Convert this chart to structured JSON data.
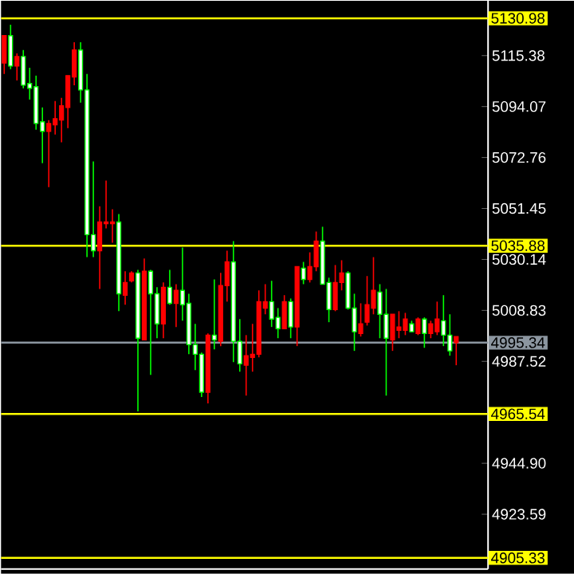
{
  "chart_data": {
    "type": "candlestick",
    "categories": [
      null,
      null,
      null,
      null,
      null,
      null,
      null,
      null,
      null,
      null,
      null,
      null,
      null,
      null,
      null,
      null,
      null,
      null,
      null,
      null,
      null,
      null,
      null,
      null,
      null,
      null,
      null,
      null,
      null,
      null,
      null,
      null,
      null,
      null,
      null,
      null,
      null,
      null,
      null,
      null,
      null,
      null,
      null,
      null,
      null,
      null,
      null,
      null,
      null,
      null,
      null,
      null,
      null,
      null,
      null,
      null,
      null,
      null,
      null,
      null,
      null,
      null,
      null,
      null,
      null,
      null,
      null,
      null,
      null,
      null,
      null,
      null
    ],
    "ohlc": [
      [
        5123.7,
        5123.7,
        5107.7,
        5112.3
      ],
      [
        5111.0,
        5128.3,
        5109.7,
        5123.7
      ],
      [
        5115.0,
        5116.3,
        5105.0,
        5111.0
      ],
      [
        5103.0,
        5117.7,
        5101.7,
        5115.0
      ],
      [
        5101.7,
        5110.3,
        5097.0,
        5103.7
      ],
      [
        5087.0,
        5107.0,
        5084.4,
        5102.4
      ],
      [
        5083.7,
        5093.7,
        5070.4,
        5087.7
      ],
      [
        5087.0,
        5088.4,
        5060.4,
        5083.7
      ],
      [
        5089.0,
        5096.4,
        5082.4,
        5086.4
      ],
      [
        5094.4,
        5097.7,
        5079.1,
        5088.4
      ],
      [
        5107.0,
        5107.0,
        5085.0,
        5093.7
      ],
      [
        5117.7,
        5121.0,
        5103.0,
        5106.4
      ],
      [
        5101.0,
        5121.0,
        5095.7,
        5117.7
      ],
      [
        5040.5,
        5107.7,
        5031.1,
        5101.0
      ],
      [
        5033.8,
        5071.1,
        5031.1,
        5040.5
      ],
      [
        5045.8,
        5052.4,
        5017.8,
        5033.8
      ],
      [
        5045.8,
        5063.1,
        5043.1,
        5045.1
      ],
      [
        5045.8,
        5051.1,
        5037.1,
        5045.1
      ],
      [
        5015.8,
        5049.1,
        5008.5,
        5045.8
      ],
      [
        5020.5,
        5025.2,
        5011.2,
        5015.2
      ],
      [
        5024.5,
        5025.2,
        5020.5,
        5021.2
      ],
      [
        4997.2,
        5025.8,
        4966.6,
        5024.5
      ],
      [
        5025.2,
        5030.5,
        4996.5,
        4996.5
      ],
      [
        5015.8,
        5025.8,
        4981.9,
        5025.2
      ],
      [
        5003.2,
        5018.5,
        4997.2,
        5015.8
      ],
      [
        5018.5,
        5020.5,
        4997.2,
        5003.2
      ],
      [
        5011.8,
        5025.8,
        5011.2,
        5018.5
      ],
      [
        5017.2,
        5019.8,
        5001.9,
        5011.8
      ],
      [
        5011.2,
        5035.1,
        5004.5,
        5017.2
      ],
      [
        4994.5,
        5015.8,
        4990.5,
        5011.8
      ],
      [
        4990.5,
        5003.2,
        4983.9,
        4994.5
      ],
      [
        4974.6,
        4991.2,
        4972.6,
        4990.5
      ],
      [
        4998.5,
        4999.2,
        4969.9,
        4974.6
      ],
      [
        4996.5,
        5021.8,
        4992.5,
        4998.5
      ],
      [
        5019.2,
        5024.5,
        4993.9,
        4995.9
      ],
      [
        5029.1,
        5033.8,
        5012.5,
        5019.2
      ],
      [
        4995.9,
        5037.8,
        4987.2,
        5029.1
      ],
      [
        4986.5,
        5005.2,
        4983.2,
        4995.9
      ],
      [
        4989.9,
        4998.5,
        4973.2,
        4985.9
      ],
      [
        4990.5,
        5003.2,
        4983.2,
        4989.2
      ],
      [
        5012.5,
        5017.2,
        4989.2,
        4990.5
      ],
      [
        5012.5,
        5019.8,
        5007.2,
        5009.8
      ],
      [
        5005.2,
        5021.2,
        5001.9,
        5012.5
      ],
      [
        5001.2,
        5009.8,
        4997.2,
        5005.9
      ],
      [
        5012.5,
        5015.2,
        5001.2,
        5001.2
      ],
      [
        5001.9,
        5013.8,
        4997.2,
        5012.5
      ],
      [
        5027.1,
        5027.1,
        4993.9,
        5001.9
      ],
      [
        5021.8,
        5029.1,
        5019.8,
        5026.5
      ],
      [
        5027.1,
        5033.1,
        5020.5,
        5021.8
      ],
      [
        5037.8,
        5041.8,
        5025.2,
        5027.1
      ],
      [
        5019.8,
        5043.8,
        5019.8,
        5037.8
      ],
      [
        5009.2,
        5022.5,
        5003.9,
        5020.5
      ],
      [
        5020.5,
        5027.8,
        5008.5,
        5009.2
      ],
      [
        5024.5,
        5029.8,
        5017.2,
        5020.5
      ],
      [
        5009.8,
        5025.2,
        5009.2,
        5024.5
      ],
      [
        4999.9,
        5015.8,
        4991.9,
        5009.8
      ],
      [
        5003.2,
        5011.8,
        4997.9,
        4999.2
      ],
      [
        5011.2,
        5023.2,
        5002.5,
        5003.9
      ],
      [
        5017.2,
        5031.1,
        5007.2,
        5009.8
      ],
      [
        5007.2,
        5019.8,
        4997.2,
        5016.5
      ],
      [
        4997.2,
        5017.8,
        4973.2,
        5007.2
      ],
      [
        5007.2,
        5007.2,
        4991.9,
        4996.5
      ],
      [
        5001.9,
        5008.5,
        4997.2,
        5000.5
      ],
      [
        5005.2,
        5007.8,
        4998.5,
        5000.5
      ],
      [
        4999.9,
        5004.5,
        4999.9,
        5003.2
      ],
      [
        5005.2,
        5005.9,
        4998.5,
        4999.2
      ],
      [
        4999.2,
        5005.9,
        4993.2,
        5005.2
      ],
      [
        5003.2,
        5004.5,
        4997.2,
        4999.2
      ],
      [
        5005.2,
        5012.5,
        4998.5,
        4999.9
      ],
      [
        4998.5,
        5015.2,
        4993.9,
        5004.5
      ],
      [
        4991.9,
        5007.2,
        4989.9,
        4998.5
      ],
      [
        4997.9,
        4997.9,
        4985.9,
        4995.34
      ]
    ],
    "colors": [
      "#ff0000",
      "#00ff00",
      "#ff0000",
      "#00ff00",
      "#00ff00",
      "#00ff00",
      "#00ff00",
      "#ff0000",
      "#ff0000",
      "#ff0000",
      "#ff0000",
      "#ff0000",
      "#00ff00",
      "#00ff00",
      "#00ff00",
      "#ff0000",
      "#ff0000",
      "#ff0000",
      "#00ff00",
      "#ff0000",
      "#ff0000",
      "#00ff00",
      "#ff0000",
      "#00ff00",
      "#00ff00",
      "#ff0000",
      "#00ff00",
      "#ff0000",
      "#00ff00",
      "#00ff00",
      "#00ff00",
      "#00ff00",
      "#ff0000",
      "#00ff00",
      "#ff0000",
      "#ff0000",
      "#00ff00",
      "#00ff00",
      "#ff0000",
      "#ff0000",
      "#ff0000",
      "#ff0000",
      "#00ff00",
      "#00ff00",
      "#ff0000",
      "#00ff00",
      "#ff0000",
      "#00ff00",
      "#ff0000",
      "#ff0000",
      "#00ff00",
      "#00ff00",
      "#ff0000",
      "#ff0000",
      "#00ff00",
      "#00ff00",
      "#ff0000",
      "#ff0000",
      "#ff0000",
      "#00ff00",
      "#00ff00",
      "#ff0000",
      "#ff0000",
      "#ff0000",
      "#00ff00",
      "#ff0000",
      "#00ff00",
      "#ff0000",
      "#ff0000",
      "#00ff00",
      "#00ff00",
      "#ff0000"
    ],
    "ylim": [
      4900.7,
      5138.3
    ],
    "yticks": [
      5115.38,
      5094.07,
      5072.76,
      5051.45,
      5030.14,
      5008.83,
      4987.52,
      {
        "value": 4944.9,
        "label": "4944.90"
      },
      4923.59
    ],
    "ref_lines": [
      {
        "axis": "y",
        "value": 5130.98,
        "label": "5130.98",
        "color": "#ffff00"
      },
      {
        "axis": "y",
        "value": 5035.88,
        "label": "5035.88",
        "color": "#ffff00"
      },
      {
        "axis": "y",
        "value": 4995.34,
        "label": "4995.34",
        "color": "#8c96a0"
      },
      {
        "axis": "y",
        "value": 4965.54,
        "label": "4965.54",
        "color": "#ffff00"
      },
      {
        "axis": "y",
        "value": 4905.33,
        "label": "4905.33",
        "color": "#ffff00"
      }
    ],
    "tick_labels": "y"
  }
}
